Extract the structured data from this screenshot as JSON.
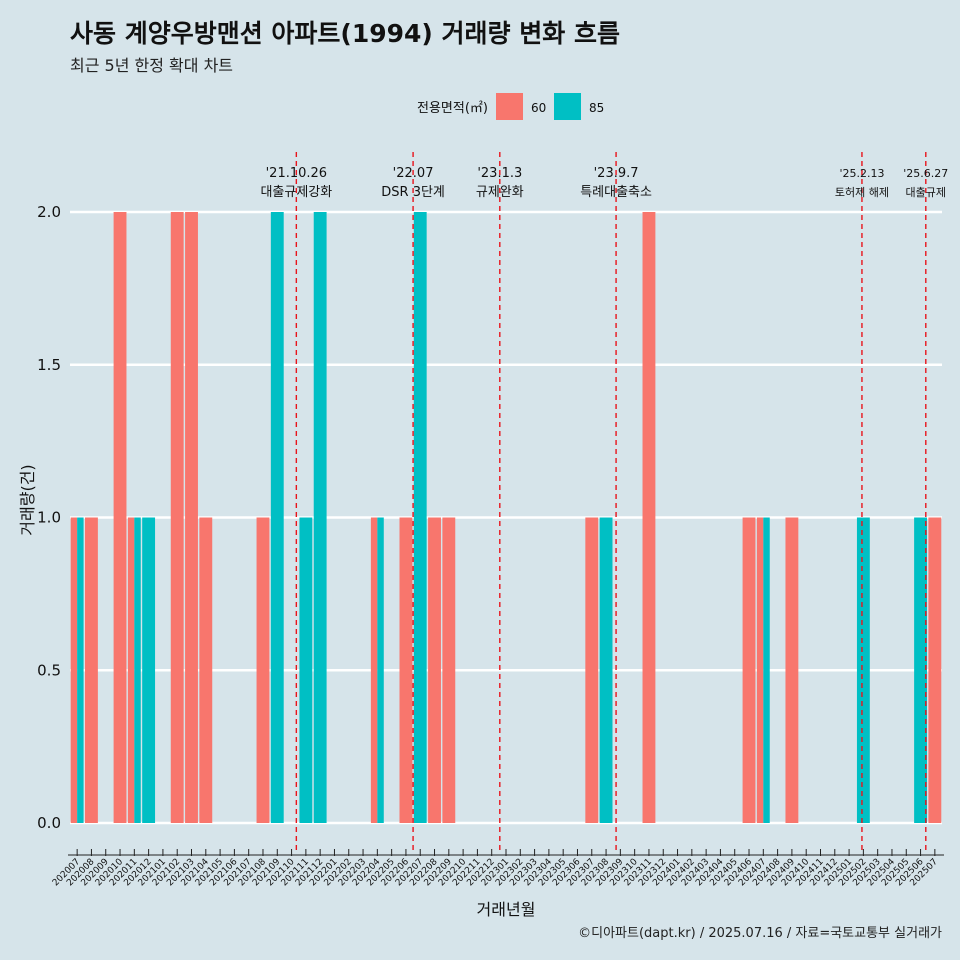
{
  "title": "사동 계양우방맨션 아파트(1994) 거래량 변화 흐름",
  "subtitle": "최근 5년 한정 확대 차트",
  "caption": "©디아파트(dapt.kr) / 2025.07.16 / 자료=국토교통부 실거래가",
  "colors": {
    "s60": "#f8766d",
    "s85": "#00bfc4",
    "grid": "#ffffff",
    "vline": "#e8141c",
    "background": "#d6e4ea"
  },
  "chart_data": {
    "type": "bar",
    "xlabel": "거래년월",
    "ylabel": "거래량(건)",
    "ylim": [
      0,
      2.0
    ],
    "yticks": [
      0.0,
      0.5,
      1.0,
      1.5,
      2.0
    ],
    "legend": {
      "title": "전용면적(㎡)",
      "position": "top"
    },
    "categories": [
      "202007",
      "202008",
      "202009",
      "202010",
      "202011",
      "202012",
      "202101",
      "202102",
      "202103",
      "202104",
      "202105",
      "202106",
      "202107",
      "202108",
      "202109",
      "202110",
      "202111",
      "202112",
      "202201",
      "202202",
      "202203",
      "202204",
      "202205",
      "202206",
      "202207",
      "202208",
      "202209",
      "202210",
      "202211",
      "202212",
      "202301",
      "202302",
      "202303",
      "202304",
      "202305",
      "202306",
      "202307",
      "202308",
      "202309",
      "202310",
      "202311",
      "202312",
      "202401",
      "202402",
      "202403",
      "202404",
      "202405",
      "202406",
      "202407",
      "202408",
      "202409",
      "202410",
      "202411",
      "202412",
      "202501",
      "202502",
      "202503",
      "202504",
      "202505",
      "202506",
      "202507"
    ],
    "series": [
      {
        "name": "60",
        "values": [
          1,
          1,
          0,
          2,
          1,
          0,
          0,
          2,
          2,
          1,
          0,
          0,
          0,
          1,
          0,
          0,
          0,
          0,
          0,
          0,
          0,
          1,
          0,
          1,
          0,
          1,
          1,
          0,
          0,
          0,
          0,
          0,
          0,
          0,
          0,
          0,
          1,
          0,
          0,
          0,
          2,
          0,
          0,
          0,
          0,
          0,
          0,
          1,
          1,
          0,
          1,
          0,
          0,
          0,
          0,
          0,
          0,
          0,
          0,
          0,
          1
        ]
      },
      {
        "name": "85",
        "values": [
          1,
          0,
          0,
          0,
          1,
          1,
          0,
          0,
          0,
          0,
          0,
          0,
          0,
          0,
          2,
          0,
          1,
          2,
          0,
          0,
          0,
          1,
          0,
          0,
          2,
          0,
          0,
          0,
          0,
          0,
          0,
          0,
          0,
          0,
          0,
          0,
          0,
          1,
          0,
          0,
          0,
          0,
          0,
          0,
          0,
          0,
          0,
          0,
          1,
          0,
          0,
          0,
          0,
          0,
          0,
          1,
          0,
          0,
          0,
          1,
          0
        ]
      }
    ],
    "annotations": [
      {
        "date": "'21.10.26",
        "label": "대출규제강화",
        "month": "202110",
        "day": 26
      },
      {
        "date": "'22.07",
        "label": "DSR 3단계",
        "month": "202207",
        "day": 1
      },
      {
        "date": "'23.1.3",
        "label": "규제완화",
        "month": "202301",
        "day": 3
      },
      {
        "date": "'23.9.7",
        "label": "특례대출축소",
        "month": "202309",
        "day": 7
      },
      {
        "date": "'25.2.13",
        "label": "토허제 해제",
        "month": "202502",
        "day": 13
      },
      {
        "date": "'25.6.27",
        "label": "대출규제",
        "month": "202506",
        "day": 27
      }
    ]
  }
}
